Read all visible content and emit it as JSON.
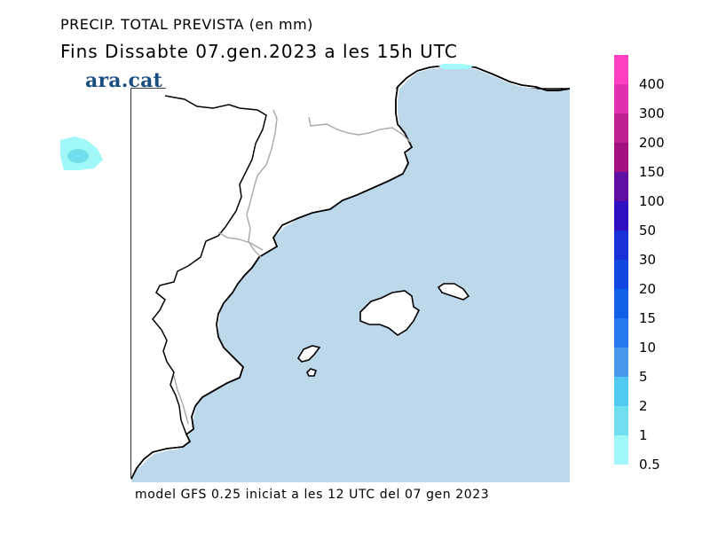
{
  "header": {
    "title": "PRECIP. TOTAL PREVISTA (en mm)",
    "subtitle": "Fins Dissabte   07.gen.2023 a les 15h UTC",
    "logo_text": "ara.cat"
  },
  "footer": {
    "text": "model GFS 0.25 iniciat a les 12 UTC del 07 gen 2023"
  },
  "legend": {
    "items": [
      {
        "label": "400",
        "color": "#ff40c0"
      },
      {
        "label": "300",
        "color": "#e030b0"
      },
      {
        "label": "200",
        "color": "#c02090"
      },
      {
        "label": "150",
        "color": "#a01080"
      },
      {
        "label": "100",
        "color": "#6010a0"
      },
      {
        "label": "50",
        "color": "#3010c0"
      },
      {
        "label": "30",
        "color": "#1830d8"
      },
      {
        "label": "20",
        "color": "#1048e0"
      },
      {
        "label": "15",
        "color": "#1060e8"
      },
      {
        "label": "10",
        "color": "#2878f0"
      },
      {
        "label": "5",
        "color": "#4898f0"
      },
      {
        "label": "2",
        "color": "#50c8f0"
      },
      {
        "label": "1",
        "color": "#70e0f0"
      },
      {
        "label": "0.5",
        "color": "#a0f8f8"
      }
    ]
  },
  "map": {
    "sea_color": "#bcd8ea",
    "land_color": "#ffffff",
    "precip_light_color": "#a0f8f8",
    "precip_medium_color": "#70e0f0"
  }
}
